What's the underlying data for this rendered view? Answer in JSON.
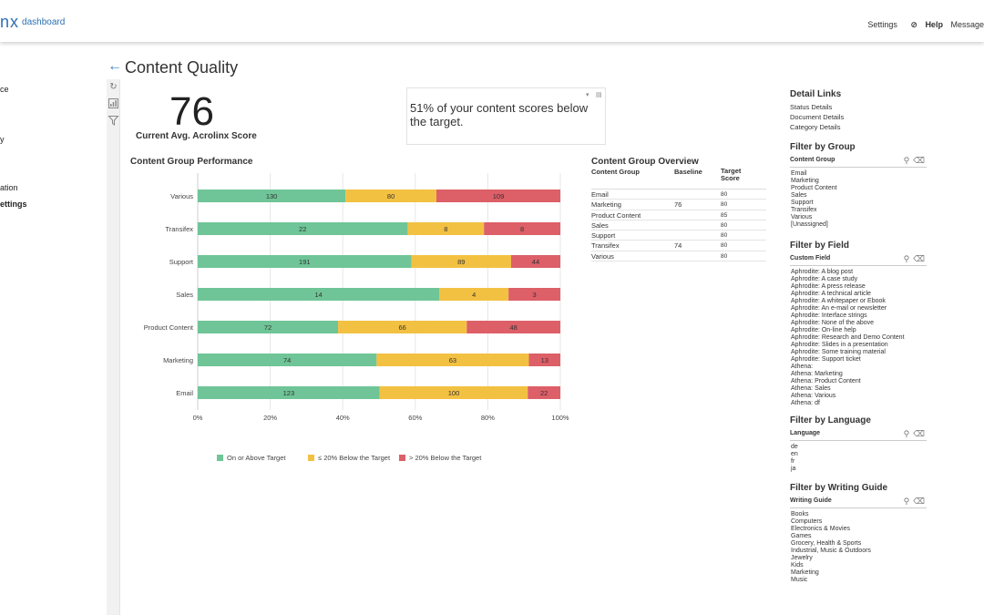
{
  "header": {
    "logo_text": "nx",
    "logo_sub": "dashboard",
    "nav": [
      "Settings",
      "Help",
      "Message"
    ]
  },
  "leftnav": {
    "items": [
      "ce",
      "y",
      "ation",
      "ettings"
    ]
  },
  "page": {
    "title": "Content Quality"
  },
  "score": {
    "value": "76",
    "label": "Current Avg. Acrolinx Score"
  },
  "summary": {
    "text": "51% of your content scores below the target."
  },
  "performance": {
    "title": "Content Group Performance"
  },
  "chart_data": {
    "type": "bar",
    "orientation": "horizontal",
    "stacked": "percent",
    "categories": [
      "Various",
      "Transifex",
      "Support",
      "Sales",
      "Product Content",
      "Marketing",
      "Email"
    ],
    "series": [
      {
        "name": "On or Above Target",
        "color": "#6fc597",
        "values": [
          130,
          22,
          191,
          14,
          72,
          74,
          123
        ]
      },
      {
        "name": "≤ 20% Below the Target",
        "color": "#f3c142",
        "values": [
          80,
          8,
          89,
          4,
          66,
          63,
          100
        ]
      },
      {
        "name": "> 20% Below the Target",
        "color": "#dd5f68",
        "values": [
          109,
          8,
          44,
          3,
          48,
          13,
          22
        ]
      }
    ],
    "xticks": [
      "0%",
      "20%",
      "40%",
      "60%",
      "80%",
      "100%"
    ],
    "xlim": [
      0,
      100
    ],
    "grid": true,
    "legend_position": "bottom"
  },
  "overview": {
    "title": "Content Group Overview",
    "headers": [
      "Content Group",
      "Baseline",
      "Target Score"
    ],
    "rows": [
      [
        "Email",
        "",
        "80"
      ],
      [
        "Marketing",
        "76",
        "80"
      ],
      [
        "Product Content",
        "",
        "85"
      ],
      [
        "Sales",
        "",
        "80"
      ],
      [
        "Support",
        "",
        "80"
      ],
      [
        "Transifex",
        "74",
        "80"
      ],
      [
        "Various",
        "",
        "80"
      ]
    ]
  },
  "detail_links": {
    "title": "Detail Links",
    "items": [
      "Status Details",
      "Document Details",
      "Category Details"
    ]
  },
  "filters": [
    {
      "title": "Filter by Group",
      "sub": "Content Group",
      "items": [
        "Email",
        "Marketing",
        "Product Content",
        "Sales",
        "Support",
        "Transifex",
        "Various",
        "[Unassigned]"
      ]
    },
    {
      "title": "Filter by Field",
      "sub": "Custom Field",
      "items": [
        "Aphrodite: A blog post",
        "Aphrodite: A case study",
        "Aphrodite: A press release",
        "Aphrodite: A technical article",
        "Aphrodite: A whitepaper or Ebook",
        "Aphrodite: An e-mail or newsletter",
        "Aphrodite: Interface strings",
        "Aphrodite: None of the above",
        "Aphrodite: On-line help",
        "Aphrodite: Research and Demo Content",
        "Aphrodite: Slides in a presentation",
        "Aphrodite: Some training material",
        "Aphrodite: Support ticket",
        "Athena:",
        "Athena: Marketing",
        "Athena: Product Content",
        "Athena: Sales",
        "Athena: Various",
        "Athena: df"
      ]
    },
    {
      "title": "Filter by Language",
      "sub": "Language",
      "items": [
        "de",
        "en",
        "fr",
        "ja"
      ]
    },
    {
      "title": "Filter by Writing Guide",
      "sub": "Writing Guide",
      "items": [
        "Books",
        "Computers",
        "Electronics & Movies",
        "Games",
        "Grocery, Health & Sports",
        "Industrial, Music & Outdoors",
        "Jewelry",
        "Kids",
        "Marketing",
        "Music"
      ]
    }
  ],
  "icons": {
    "back": "arrow-left-icon",
    "refresh": "refresh-icon",
    "chart_type": "chart-type-icon",
    "filter_clear": "filter-clear-icon",
    "search": "search-icon",
    "eraser": "eraser-icon"
  }
}
